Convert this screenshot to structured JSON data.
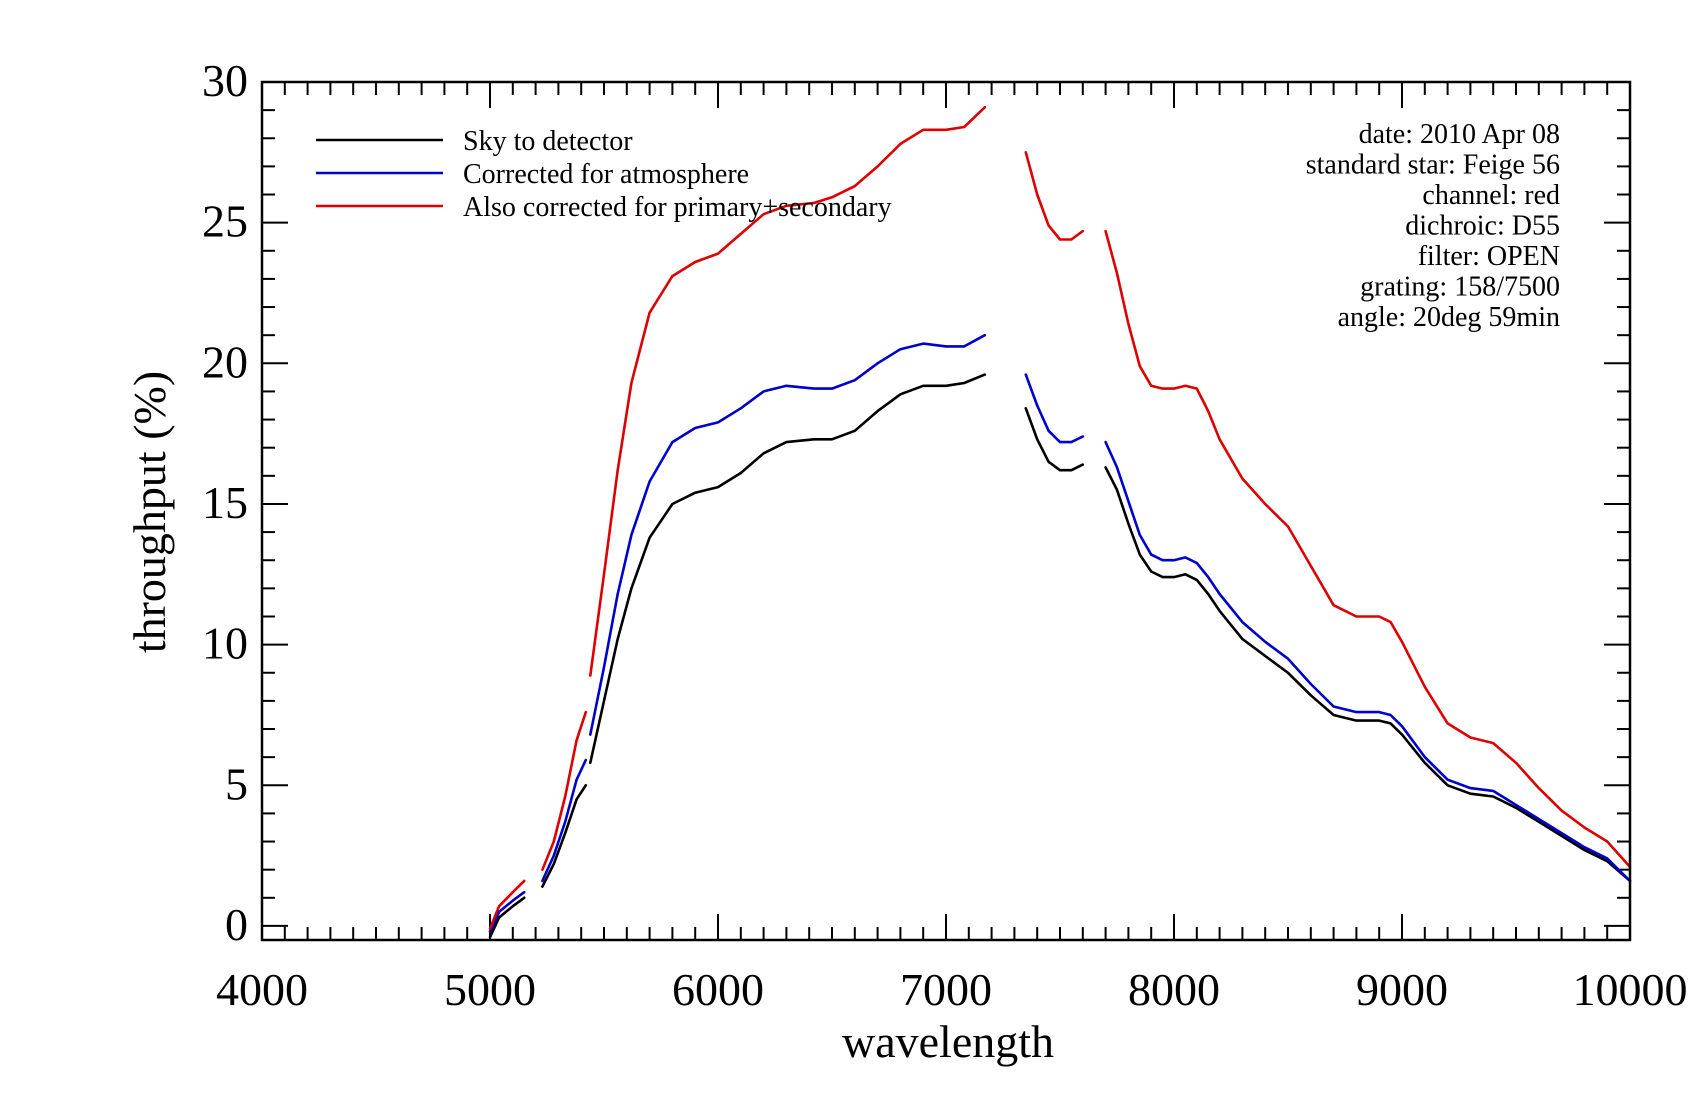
{
  "chart_data": {
    "type": "line",
    "xlabel": "wavelength",
    "ylabel": "throughput (%)",
    "xlim": [
      4000,
      10000
    ],
    "ylim": [
      -0.5,
      30
    ],
    "x_ticks": [
      4000,
      5000,
      6000,
      7000,
      8000,
      9000,
      10000
    ],
    "y_ticks": [
      0,
      5,
      10,
      15,
      20,
      25,
      30
    ],
    "legend_position": "top-left",
    "series": [
      {
        "name": "Sky to detector",
        "color": "#000000",
        "segments": [
          [
            [
              5000,
              -0.4
            ],
            [
              5040,
              0.3
            ],
            [
              5100,
              0.7
            ],
            [
              5150,
              1.0
            ]
          ],
          [
            [
              5230,
              1.4
            ],
            [
              5280,
              2.2
            ],
            [
              5330,
              3.3
            ],
            [
              5380,
              4.5
            ],
            [
              5420,
              5.0
            ]
          ],
          [
            [
              5440,
              5.8
            ],
            [
              5500,
              8.0
            ],
            [
              5560,
              10.2
            ],
            [
              5620,
              12.0
            ],
            [
              5700,
              13.8
            ],
            [
              5800,
              15.0
            ],
            [
              5900,
              15.4
            ],
            [
              6000,
              15.6
            ],
            [
              6100,
              16.1
            ],
            [
              6200,
              16.8
            ],
            [
              6300,
              17.2
            ],
            [
              6420,
              17.3
            ],
            [
              6500,
              17.3
            ],
            [
              6600,
              17.6
            ],
            [
              6700,
              18.3
            ],
            [
              6800,
              18.9
            ],
            [
              6900,
              19.2
            ],
            [
              7000,
              19.2
            ],
            [
              7080,
              19.3
            ],
            [
              7170,
              19.6
            ]
          ],
          [
            [
              7350,
              18.4
            ],
            [
              7400,
              17.3
            ],
            [
              7450,
              16.5
            ],
            [
              7500,
              16.2
            ],
            [
              7550,
              16.2
            ],
            [
              7600,
              16.4
            ]
          ],
          [
            [
              7700,
              16.3
            ],
            [
              7750,
              15.5
            ],
            [
              7800,
              14.3
            ],
            [
              7850,
              13.2
            ],
            [
              7900,
              12.6
            ],
            [
              7950,
              12.4
            ],
            [
              8000,
              12.4
            ],
            [
              8050,
              12.5
            ],
            [
              8100,
              12.3
            ],
            [
              8150,
              11.8
            ],
            [
              8200,
              11.2
            ],
            [
              8300,
              10.2
            ],
            [
              8400,
              9.6
            ],
            [
              8500,
              9.0
            ],
            [
              8600,
              8.2
            ],
            [
              8700,
              7.5
            ],
            [
              8800,
              7.3
            ],
            [
              8900,
              7.3
            ],
            [
              8950,
              7.2
            ],
            [
              9000,
              6.8
            ],
            [
              9100,
              5.8
            ],
            [
              9200,
              5.0
            ],
            [
              9300,
              4.7
            ],
            [
              9400,
              4.6
            ],
            [
              9500,
              4.2
            ],
            [
              9600,
              3.7
            ],
            [
              9700,
              3.2
            ],
            [
              9800,
              2.7
            ],
            [
              9900,
              2.3
            ],
            [
              10000,
              1.6
            ]
          ]
        ]
      },
      {
        "name": "Corrected for atmosphere",
        "color": "#0000cc",
        "segments": [
          [
            [
              5000,
              -0.2
            ],
            [
              5040,
              0.5
            ],
            [
              5100,
              0.9
            ],
            [
              5150,
              1.2
            ]
          ],
          [
            [
              5230,
              1.6
            ],
            [
              5280,
              2.5
            ],
            [
              5330,
              3.7
            ],
            [
              5380,
              5.2
            ],
            [
              5420,
              5.9
            ]
          ],
          [
            [
              5440,
              6.8
            ],
            [
              5500,
              9.2
            ],
            [
              5560,
              11.8
            ],
            [
              5620,
              13.9
            ],
            [
              5700,
              15.8
            ],
            [
              5800,
              17.2
            ],
            [
              5900,
              17.7
            ],
            [
              6000,
              17.9
            ],
            [
              6100,
              18.4
            ],
            [
              6200,
              19.0
            ],
            [
              6300,
              19.2
            ],
            [
              6420,
              19.1
            ],
            [
              6500,
              19.1
            ],
            [
              6600,
              19.4
            ],
            [
              6700,
              20.0
            ],
            [
              6800,
              20.5
            ],
            [
              6900,
              20.7
            ],
            [
              7000,
              20.6
            ],
            [
              7080,
              20.6
            ],
            [
              7170,
              21.0
            ]
          ],
          [
            [
              7350,
              19.6
            ],
            [
              7400,
              18.5
            ],
            [
              7450,
              17.6
            ],
            [
              7500,
              17.2
            ],
            [
              7550,
              17.2
            ],
            [
              7600,
              17.4
            ]
          ],
          [
            [
              7700,
              17.2
            ],
            [
              7750,
              16.3
            ],
            [
              7800,
              15.1
            ],
            [
              7850,
              13.9
            ],
            [
              7900,
              13.2
            ],
            [
              7950,
              13.0
            ],
            [
              8000,
              13.0
            ],
            [
              8050,
              13.1
            ],
            [
              8100,
              12.9
            ],
            [
              8150,
              12.4
            ],
            [
              8200,
              11.8
            ],
            [
              8300,
              10.8
            ],
            [
              8400,
              10.1
            ],
            [
              8500,
              9.5
            ],
            [
              8600,
              8.6
            ],
            [
              8700,
              7.8
            ],
            [
              8800,
              7.6
            ],
            [
              8900,
              7.6
            ],
            [
              8950,
              7.5
            ],
            [
              9000,
              7.1
            ],
            [
              9100,
              6.0
            ],
            [
              9200,
              5.2
            ],
            [
              9300,
              4.9
            ],
            [
              9400,
              4.8
            ],
            [
              9500,
              4.3
            ],
            [
              9600,
              3.8
            ],
            [
              9700,
              3.3
            ],
            [
              9800,
              2.8
            ],
            [
              9900,
              2.4
            ],
            [
              10000,
              1.6
            ]
          ]
        ]
      },
      {
        "name": "Also corrected for primary+secondary",
        "color": "#dd0000",
        "segments": [
          [
            [
              5000,
              -0.1
            ],
            [
              5040,
              0.7
            ],
            [
              5100,
              1.2
            ],
            [
              5150,
              1.6
            ]
          ],
          [
            [
              5230,
              2.0
            ],
            [
              5280,
              3.0
            ],
            [
              5330,
              4.6
            ],
            [
              5380,
              6.6
            ],
            [
              5420,
              7.6
            ]
          ],
          [
            [
              5440,
              8.9
            ],
            [
              5500,
              12.5
            ],
            [
              5560,
              16.2
            ],
            [
              5620,
              19.3
            ],
            [
              5700,
              21.8
            ],
            [
              5800,
              23.1
            ],
            [
              5900,
              23.6
            ],
            [
              6000,
              23.9
            ],
            [
              6100,
              24.6
            ],
            [
              6200,
              25.3
            ],
            [
              6300,
              25.6
            ],
            [
              6420,
              25.7
            ],
            [
              6500,
              25.9
            ],
            [
              6600,
              26.3
            ],
            [
              6700,
              27.0
            ],
            [
              6800,
              27.8
            ],
            [
              6900,
              28.3
            ],
            [
              7000,
              28.3
            ],
            [
              7080,
              28.4
            ],
            [
              7170,
              29.1
            ]
          ],
          [
            [
              7350,
              27.5
            ],
            [
              7400,
              26.0
            ],
            [
              7450,
              24.9
            ],
            [
              7500,
              24.4
            ],
            [
              7550,
              24.4
            ],
            [
              7600,
              24.7
            ]
          ],
          [
            [
              7700,
              24.7
            ],
            [
              7750,
              23.2
            ],
            [
              7800,
              21.4
            ],
            [
              7850,
              19.9
            ],
            [
              7900,
              19.2
            ],
            [
              7950,
              19.1
            ],
            [
              8000,
              19.1
            ],
            [
              8050,
              19.2
            ],
            [
              8100,
              19.1
            ],
            [
              8150,
              18.3
            ],
            [
              8200,
              17.3
            ],
            [
              8300,
              15.9
            ],
            [
              8400,
              15.0
            ],
            [
              8500,
              14.2
            ],
            [
              8600,
              12.8
            ],
            [
              8700,
              11.4
            ],
            [
              8800,
              11.0
            ],
            [
              8900,
              11.0
            ],
            [
              8950,
              10.8
            ],
            [
              9000,
              10.1
            ],
            [
              9100,
              8.5
            ],
            [
              9200,
              7.2
            ],
            [
              9300,
              6.7
            ],
            [
              9400,
              6.5
            ],
            [
              9500,
              5.8
            ],
            [
              9600,
              4.9
            ],
            [
              9700,
              4.1
            ],
            [
              9800,
              3.5
            ],
            [
              9900,
              3.0
            ],
            [
              10000,
              2.1
            ]
          ]
        ]
      }
    ],
    "annotations": [
      "date: 2010 Apr 08",
      "standard star: Feige 56",
      "channel: red",
      "dichroic: D55",
      "filter: OPEN",
      "grating: 158/7500",
      "angle: 20deg 59min"
    ]
  }
}
